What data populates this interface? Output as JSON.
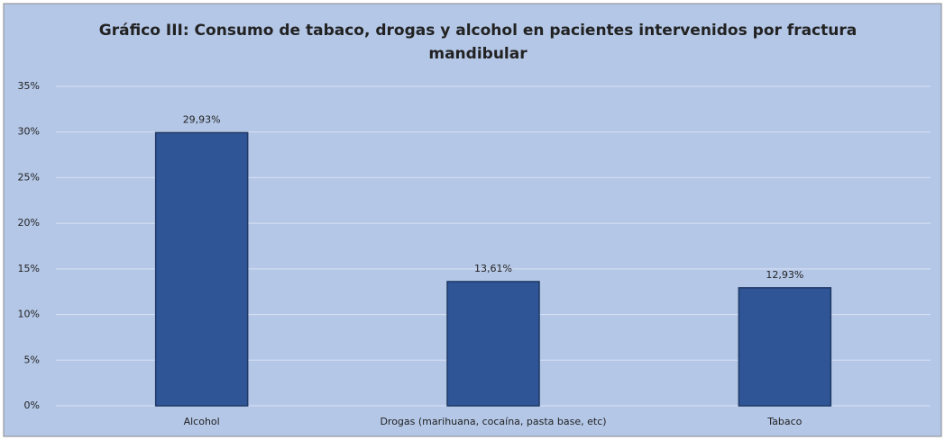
{
  "chart_data": {
    "type": "bar",
    "title": [
      "Gráfico III: Consumo de tabaco, drogas y alcohol en pacientes intervenidos por fractura",
      "mandibular"
    ],
    "categories": [
      "Alcohol",
      "Drogas (marihuana, cocaína, pasta base, etc)",
      "Tabaco"
    ],
    "values": [
      29.93,
      13.61,
      12.93
    ],
    "value_labels": [
      "29,93%",
      "13,61%",
      "12,93%"
    ],
    "color": "#2f5597",
    "ylim": [
      0,
      35
    ],
    "yticks": [
      {
        "value": 0,
        "label": "0%"
      },
      {
        "value": 5,
        "label": "5%"
      },
      {
        "value": 10,
        "label": "10%"
      },
      {
        "value": 15,
        "label": "15%"
      },
      {
        "value": 20,
        "label": "20%"
      },
      {
        "value": 25,
        "label": "25%"
      },
      {
        "value": 30,
        "label": "30%"
      },
      {
        "value": 35,
        "label": "35%"
      }
    ],
    "grid": true
  }
}
